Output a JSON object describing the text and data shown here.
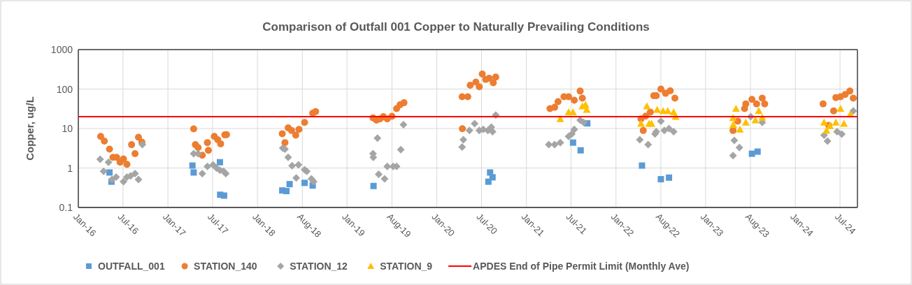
{
  "chart_data": {
    "type": "scatter",
    "title": "Comparison of Outfall 001 Copper to Naturally Prevailing Conditions",
    "ylabel": "Copper, ug/L",
    "log": "y",
    "grid": true,
    "legend": "bottom",
    "xlim": [
      "2016-01-31",
      "2024-10-10"
    ],
    "ylim": [
      0.1,
      1000
    ],
    "yticks": [
      0.1,
      1,
      10,
      100,
      1000
    ],
    "xticks": [
      {
        "value": "2016-01-31",
        "label": "Jan-16"
      },
      {
        "value": "2016-07-31",
        "label": "Jul-16"
      },
      {
        "value": "2017-01-30",
        "label": "Jan-17"
      },
      {
        "value": "2017-07-31",
        "label": "Jul-17"
      },
      {
        "value": "2018-01-30",
        "label": "Jan-18"
      },
      {
        "value": "2018-08-01",
        "label": "Aug-18"
      },
      {
        "value": "2019-01-30",
        "label": "Jan-19"
      },
      {
        "value": "2019-08-01",
        "label": "Aug-19"
      },
      {
        "value": "2020-01-31",
        "label": "Jan-20"
      },
      {
        "value": "2020-07-31",
        "label": "Jul-20"
      },
      {
        "value": "2021-01-30",
        "label": "Jan-21"
      },
      {
        "value": "2021-07-31",
        "label": "Jul-21"
      },
      {
        "value": "2022-01-30",
        "label": "Jan-22"
      },
      {
        "value": "2022-08-01",
        "label": "Aug-22"
      },
      {
        "value": "2023-01-30",
        "label": "Jan-23"
      },
      {
        "value": "2023-08-01",
        "label": "Aug-23"
      },
      {
        "value": "2024-01-31",
        "label": "Jan-24"
      },
      {
        "value": "2024-07-31",
        "label": "Jul-24"
      }
    ],
    "ref_lines": [
      {
        "axis": "y",
        "value": 20,
        "label": "APDES End of Pipe Permit Limit (Monthly Ave)",
        "color": "#ff0000"
      }
    ],
    "series": [
      {
        "name": "OUTFALL_001",
        "color": "#5b9bd5",
        "marker": "square",
        "x": [
          "2016-06-06",
          "2016-06-14",
          "2017-05-10",
          "2017-05-15",
          "2017-08-30",
          "2017-08-31",
          "2017-09-16",
          "2018-05-11",
          "2018-05-28",
          "2018-06-10",
          "2018-08-10",
          "2018-09-12",
          "2019-05-18",
          "2020-08-28",
          "2020-09-04",
          "2020-09-14",
          "2021-08-08",
          "2021-09-08",
          "2021-10-05",
          "2022-05-16",
          "2022-08-01",
          "2022-09-03",
          "2023-08-07",
          "2023-08-30"
        ],
        "values": [
          0.77,
          0.45,
          1.15,
          0.77,
          1.4,
          0.21,
          0.2,
          0.27,
          0.26,
          0.39,
          0.42,
          0.36,
          0.35,
          0.45,
          0.77,
          0.58,
          4.4,
          2.8,
          13.5,
          1.15,
          0.52,
          0.57,
          2.3,
          2.6
        ]
      },
      {
        "name": "STATION_140",
        "color": "#ed7d31",
        "marker": "circle",
        "x": [
          "2016-05-01",
          "2016-05-16",
          "2016-06-06",
          "2016-06-20",
          "2016-07-05",
          "2016-07-19",
          "2016-08-02",
          "2016-08-16",
          "2016-09-04",
          "2016-09-18",
          "2016-10-02",
          "2016-10-16",
          "2017-05-15",
          "2017-05-22",
          "2017-06-02",
          "2017-06-19",
          "2017-07-10",
          "2017-07-14",
          "2017-08-07",
          "2017-08-21",
          "2017-09-02",
          "2017-09-19",
          "2017-09-26",
          "2018-05-11",
          "2018-05-22",
          "2018-06-04",
          "2018-06-18",
          "2018-07-05",
          "2018-07-18",
          "2018-08-10",
          "2018-09-12",
          "2018-09-24",
          "2019-05-16",
          "2019-05-30",
          "2019-06-13",
          "2019-06-27",
          "2019-07-13",
          "2019-08-01",
          "2019-08-20",
          "2019-09-03",
          "2019-09-19",
          "2020-05-13",
          "2020-05-14",
          "2020-06-05",
          "2020-06-15",
          "2020-07-08",
          "2020-07-22",
          "2020-08-03",
          "2020-08-17",
          "2020-08-31",
          "2020-09-17",
          "2020-09-27",
          "2021-05-06",
          "2021-05-25",
          "2021-06-08",
          "2021-07-02",
          "2021-07-21",
          "2021-08-13",
          "2021-09-06",
          "2021-09-15",
          "2022-05-12",
          "2022-05-21",
          "2022-05-31",
          "2022-06-19",
          "2022-07-03",
          "2022-07-13",
          "2022-08-01",
          "2022-08-20",
          "2022-09-08",
          "2022-09-27",
          "2023-05-22",
          "2023-06-10",
          "2023-07-08",
          "2023-07-13",
          "2023-08-07",
          "2023-08-26",
          "2023-09-18",
          "2023-09-28",
          "2024-05-23",
          "2024-06-15",
          "2024-07-05",
          "2024-07-14",
          "2024-08-02",
          "2024-08-21",
          "2024-09-09",
          "2024-09-23"
        ],
        "values": [
          6.3,
          4.8,
          3.0,
          1.86,
          1.86,
          1.4,
          1.7,
          1.24,
          3.9,
          2.3,
          6.0,
          4.5,
          9.8,
          3.9,
          3.3,
          2.1,
          4.4,
          2.8,
          6.3,
          5.2,
          4.1,
          6.9,
          7.0,
          7.4,
          4.4,
          10.4,
          8.9,
          6.8,
          9.5,
          14.3,
          24.5,
          27,
          18.7,
          16.3,
          17.5,
          20,
          17.5,
          20.4,
          32,
          40,
          45,
          64,
          9.9,
          64,
          125,
          150,
          114,
          240,
          176,
          188,
          144,
          201,
          32,
          34.5,
          48,
          64,
          64,
          52,
          89,
          59,
          17.5,
          8.9,
          20.6,
          26,
          68,
          68,
          100,
          78,
          90,
          59,
          8.9,
          15.4,
          32,
          42,
          55,
          42,
          59,
          42,
          42,
          12,
          28,
          61,
          64,
          73,
          89,
          59
        ]
      },
      {
        "name": "STATION_12",
        "color": "#a5a5a5",
        "marker": "diamond",
        "x": [
          "2016-04-29",
          "2016-05-13",
          "2016-06-02",
          "2016-06-16",
          "2016-07-03",
          "2016-08-02",
          "2016-08-16",
          "2016-08-31",
          "2016-09-18",
          "2016-10-02",
          "2016-10-18",
          "2017-05-15",
          "2017-06-02",
          "2017-06-19",
          "2017-07-10",
          "2017-08-02",
          "2017-08-16",
          "2017-08-30",
          "2017-09-14",
          "2017-09-23",
          "2018-05-13",
          "2018-05-22",
          "2018-06-04",
          "2018-06-20",
          "2018-07-07",
          "2018-07-16",
          "2018-08-10",
          "2018-08-19",
          "2018-09-07",
          "2018-09-16",
          "2019-05-16",
          "2019-05-17",
          "2019-06-03",
          "2019-06-08",
          "2019-07-02",
          "2019-07-13",
          "2019-08-06",
          "2019-08-20",
          "2019-09-06",
          "2019-09-17",
          "2020-05-13",
          "2020-05-18",
          "2020-06-12",
          "2020-07-03",
          "2020-07-22",
          "2020-08-07",
          "2020-08-26",
          "2020-09-09",
          "2020-09-14",
          "2020-09-27",
          "2021-05-01",
          "2021-05-25",
          "2021-06-17",
          "2021-07-21",
          "2021-08-03",
          "2021-08-13",
          "2021-09-06",
          "2021-09-20",
          "2022-05-07",
          "2022-06-10",
          "2022-07-08",
          "2022-07-13",
          "2022-08-01",
          "2022-08-15",
          "2022-09-03",
          "2022-09-22",
          "2023-05-22",
          "2023-05-27",
          "2023-06-17",
          "2023-08-02",
          "2023-09-18",
          "2024-05-27",
          "2024-06-10",
          "2024-07-19",
          "2024-08-07",
          "2024-09-23"
        ],
        "values": [
          1.66,
          0.82,
          1.4,
          0.51,
          0.59,
          0.45,
          0.59,
          0.63,
          0.72,
          0.51,
          3.9,
          2.3,
          2.3,
          0.72,
          1.1,
          1.2,
          1.0,
          0.88,
          0.82,
          0.72,
          3.2,
          3.0,
          1.86,
          1.14,
          0.56,
          1.2,
          0.9,
          0.82,
          0.53,
          0.45,
          2.3,
          1.86,
          5.7,
          0.69,
          0.53,
          1.1,
          1.1,
          1.1,
          2.9,
          12.5,
          3.4,
          5.2,
          8.9,
          13.3,
          8.9,
          9.5,
          8.9,
          10.8,
          8.3,
          22,
          3.9,
          3.9,
          4.4,
          6.3,
          7.3,
          9.5,
          16.3,
          14.3,
          5.2,
          3.9,
          7.3,
          8.3,
          15.4,
          8.9,
          10,
          8.3,
          2.06,
          5.0,
          3.3,
          20,
          14.3,
          6.8,
          4.8,
          8.3,
          7.2,
          28
        ]
      },
      {
        "name": "STATION_9",
        "color": "#ffc000",
        "marker": "triangle",
        "x": [
          "2021-06-17",
          "2021-07-21",
          "2021-08-08",
          "2021-09-15",
          "2021-09-28",
          "2021-10-03",
          "2022-05-12",
          "2022-06-05",
          "2022-06-14",
          "2022-06-24",
          "2022-07-17",
          "2022-08-10",
          "2022-08-29",
          "2022-09-22",
          "2022-09-30",
          "2023-05-22",
          "2023-05-23",
          "2023-06-03",
          "2023-06-19",
          "2023-07-13",
          "2023-08-21",
          "2023-09-04",
          "2023-09-18",
          "2024-05-27",
          "2024-06-06",
          "2024-06-20",
          "2024-07-14",
          "2024-08-02",
          "2024-08-16",
          "2024-09-11"
        ],
        "values": [
          17.5,
          26,
          26,
          37,
          40,
          30,
          13.3,
          37,
          13.3,
          13.3,
          30,
          28,
          28,
          26,
          20,
          18.7,
          12.5,
          32,
          9.5,
          14.3,
          16.3,
          28,
          19,
          14.3,
          8.9,
          11.7,
          14.3,
          32,
          13.3,
          23
        ]
      }
    ]
  }
}
